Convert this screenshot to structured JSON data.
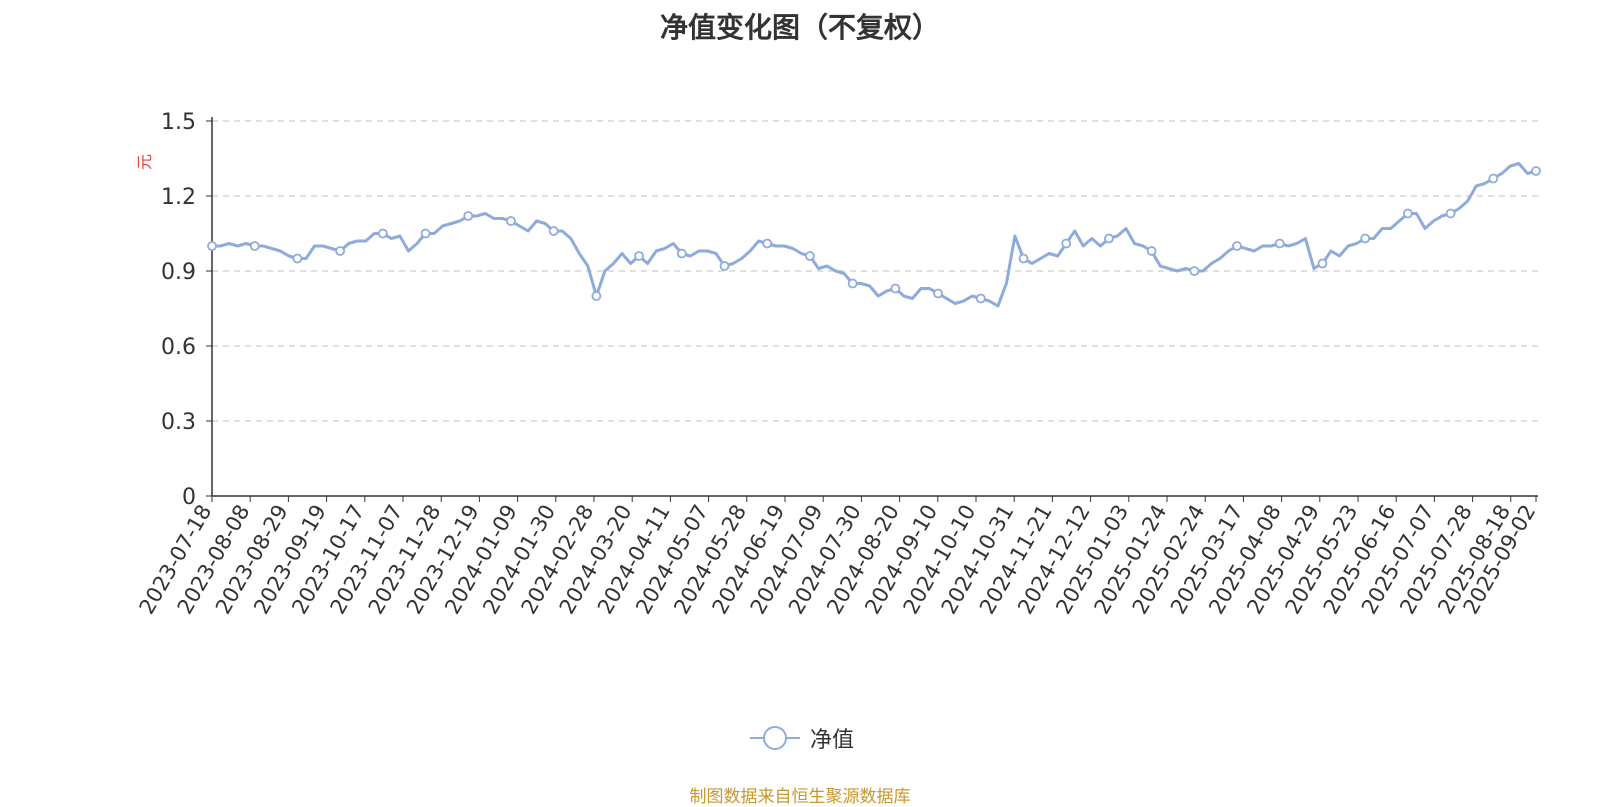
{
  "chart_data": {
    "type": "line",
    "title": "净值变化图（不复权）",
    "ylabel": "元",
    "ylim": [
      0,
      1.5
    ],
    "yticks": [
      "0",
      "0.3",
      "0.6",
      "0.9",
      "1.2",
      "1.5"
    ],
    "x_tick_labels": [
      "2023-07-18",
      "2023-08-08",
      "2023-08-29",
      "2023-09-19",
      "2023-10-17",
      "2023-11-07",
      "2023-11-28",
      "2023-12-19",
      "2024-01-09",
      "2024-01-30",
      "2024-02-28",
      "2024-03-20",
      "2024-04-11",
      "2024-05-07",
      "2024-05-28",
      "2024-06-19",
      "2024-07-09",
      "2024-07-30",
      "2024-08-20",
      "2024-09-10",
      "2024-10-10",
      "2024-10-31",
      "2024-11-21",
      "2024-12-12",
      "2025-01-03",
      "2025-01-24",
      "2025-02-24",
      "2025-03-17",
      "2025-04-08",
      "2025-04-29",
      "2025-05-23",
      "2025-06-16",
      "2025-07-07",
      "2025-07-28",
      "2025-08-18",
      "2025-09-02"
    ],
    "grid": true,
    "legend_position": "bottom-center",
    "series": [
      {
        "name": "净值",
        "color": "#8eabd9",
        "values": [
          1.0,
          1.0,
          1.01,
          1.0,
          1.01,
          1.0,
          1.0,
          0.99,
          0.98,
          0.96,
          0.95,
          0.95,
          1.0,
          1.0,
          0.99,
          0.98,
          1.01,
          1.02,
          1.02,
          1.05,
          1.05,
          1.03,
          1.04,
          0.98,
          1.01,
          1.05,
          1.05,
          1.08,
          1.09,
          1.1,
          1.12,
          1.12,
          1.13,
          1.11,
          1.11,
          1.1,
          1.08,
          1.06,
          1.1,
          1.09,
          1.06,
          1.06,
          1.03,
          0.97,
          0.92,
          0.8,
          0.9,
          0.93,
          0.97,
          0.93,
          0.96,
          0.93,
          0.98,
          0.99,
          1.01,
          0.97,
          0.96,
          0.98,
          0.98,
          0.97,
          0.92,
          0.93,
          0.95,
          0.98,
          1.02,
          1.01,
          1.0,
          1.0,
          0.99,
          0.97,
          0.96,
          0.91,
          0.92,
          0.9,
          0.89,
          0.85,
          0.85,
          0.84,
          0.8,
          0.82,
          0.83,
          0.8,
          0.79,
          0.83,
          0.83,
          0.81,
          0.79,
          0.77,
          0.78,
          0.8,
          0.79,
          0.78,
          0.76,
          0.85,
          1.04,
          0.95,
          0.93,
          0.95,
          0.97,
          0.96,
          1.01,
          1.06,
          1.0,
          1.03,
          1.0,
          1.03,
          1.04,
          1.07,
          1.01,
          1.0,
          0.98,
          0.92,
          0.91,
          0.9,
          0.91,
          0.9,
          0.9,
          0.93,
          0.95,
          0.98,
          1.0,
          0.99,
          0.98,
          1.0,
          1.0,
          1.01,
          1.0,
          1.01,
          1.03,
          0.91,
          0.93,
          0.98,
          0.96,
          1.0,
          1.01,
          1.03,
          1.03,
          1.07,
          1.07,
          1.1,
          1.13,
          1.13,
          1.07,
          1.1,
          1.12,
          1.13,
          1.15,
          1.18,
          1.24,
          1.25,
          1.27,
          1.29,
          1.32,
          1.33,
          1.29,
          1.3
        ]
      }
    ]
  },
  "legend": {
    "label": "净值"
  },
  "source": "制图数据来自恒生聚源数据库"
}
